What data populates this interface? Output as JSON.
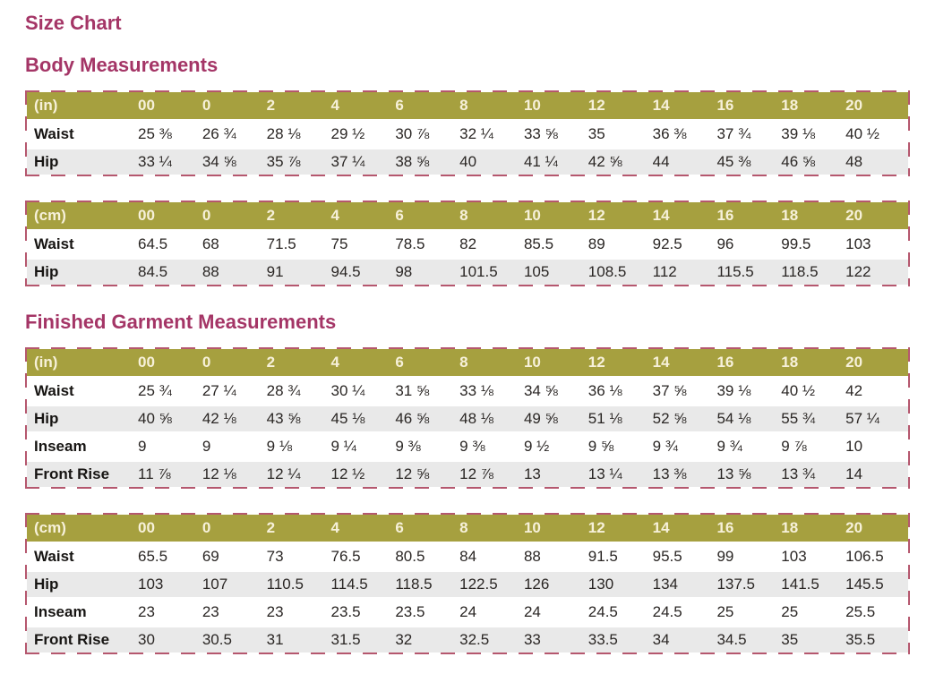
{
  "theme": {
    "accent": "#a43566",
    "table_header_bg": "#a6a03f",
    "table_header_text": "#f7f1da",
    "dashed_border": "#b5576e",
    "alt_row_bg": "#e9e9e9"
  },
  "page": {
    "title": "Size Chart"
  },
  "sections": [
    {
      "heading": "Body Measurements",
      "tables": [
        {
          "unit_label": "(in)",
          "sizes": [
            "00",
            "0",
            "2",
            "4",
            "6",
            "8",
            "10",
            "12",
            "14",
            "16",
            "18",
            "20"
          ],
          "rows": [
            {
              "label": "Waist",
              "values": [
                "25 ⅜",
                "26 ¾",
                "28 ⅛",
                "29 ½",
                "30 ⅞",
                "32 ¼",
                "33 ⅝",
                "35",
                "36 ⅜",
                "37 ¾",
                "39 ⅛",
                "40 ½"
              ]
            },
            {
              "label": "Hip",
              "values": [
                "33 ¼",
                "34 ⅝",
                "35 ⅞",
                "37 ¼",
                "38 ⅝",
                "40",
                "41 ¼",
                "42 ⅝",
                "44",
                "45 ⅜",
                "46 ⅝",
                "48"
              ]
            }
          ]
        },
        {
          "unit_label": "(cm)",
          "sizes": [
            "00",
            "0",
            "2",
            "4",
            "6",
            "8",
            "10",
            "12",
            "14",
            "16",
            "18",
            "20"
          ],
          "rows": [
            {
              "label": "Waist",
              "values": [
                "64.5",
                "68",
                "71.5",
                "75",
                "78.5",
                "82",
                "85.5",
                "89",
                "92.5",
                "96",
                "99.5",
                "103"
              ]
            },
            {
              "label": "Hip",
              "values": [
                "84.5",
                "88",
                "91",
                "94.5",
                "98",
                "101.5",
                "105",
                "108.5",
                "112",
                "115.5",
                "118.5",
                "122"
              ]
            }
          ]
        }
      ]
    },
    {
      "heading": "Finished Garment Measurements",
      "tables": [
        {
          "unit_label": "(in)",
          "sizes": [
            "00",
            "0",
            "2",
            "4",
            "6",
            "8",
            "10",
            "12",
            "14",
            "16",
            "18",
            "20"
          ],
          "rows": [
            {
              "label": "Waist",
              "values": [
                "25 ¾",
                "27 ¼",
                "28 ¾",
                "30 ¼",
                "31 ⅝",
                "33 ⅛",
                "34 ⅝",
                "36 ⅛",
                "37 ⅝",
                "39 ⅛",
                "40 ½",
                "42"
              ]
            },
            {
              "label": "Hip",
              "values": [
                "40 ⅝",
                "42 ⅛",
                "43 ⅝",
                "45 ⅛",
                "46 ⅝",
                "48 ⅛",
                "49 ⅝",
                "51 ⅛",
                "52 ⅝",
                "54 ⅛",
                "55 ¾",
                "57 ¼"
              ]
            },
            {
              "label": "Inseam",
              "values": [
                "9",
                "9",
                "9 ⅛",
                "9 ¼",
                "9 ⅜",
                "9 ⅜",
                "9 ½",
                "9 ⅝",
                "9 ¾",
                "9 ¾",
                "9 ⅞",
                "10"
              ]
            },
            {
              "label": "Front Rise",
              "values": [
                "11 ⅞",
                "12 ⅛",
                "12 ¼",
                "12 ½",
                "12 ⅝",
                "12 ⅞",
                "13",
                "13 ¼",
                "13 ⅜",
                "13 ⅝",
                "13 ¾",
                "14"
              ]
            }
          ]
        },
        {
          "unit_label": "(cm)",
          "sizes": [
            "00",
            "0",
            "2",
            "4",
            "6",
            "8",
            "10",
            "12",
            "14",
            "16",
            "18",
            "20"
          ],
          "rows": [
            {
              "label": "Waist",
              "values": [
                "65.5",
                "69",
                "73",
                "76.5",
                "80.5",
                "84",
                "88",
                "91.5",
                "95.5",
                "99",
                "103",
                "106.5"
              ]
            },
            {
              "label": "Hip",
              "values": [
                "103",
                "107",
                "110.5",
                "114.5",
                "118.5",
                "122.5",
                "126",
                "130",
                "134",
                "137.5",
                "141.5",
                "145.5"
              ]
            },
            {
              "label": "Inseam",
              "values": [
                "23",
                "23",
                "23",
                "23.5",
                "23.5",
                "24",
                "24",
                "24.5",
                "24.5",
                "25",
                "25",
                "25.5"
              ]
            },
            {
              "label": "Front Rise",
              "values": [
                "30",
                "30.5",
                "31",
                "31.5",
                "32",
                "32.5",
                "33",
                "33.5",
                "34",
                "34.5",
                "35",
                "35.5"
              ]
            }
          ]
        }
      ]
    }
  ]
}
